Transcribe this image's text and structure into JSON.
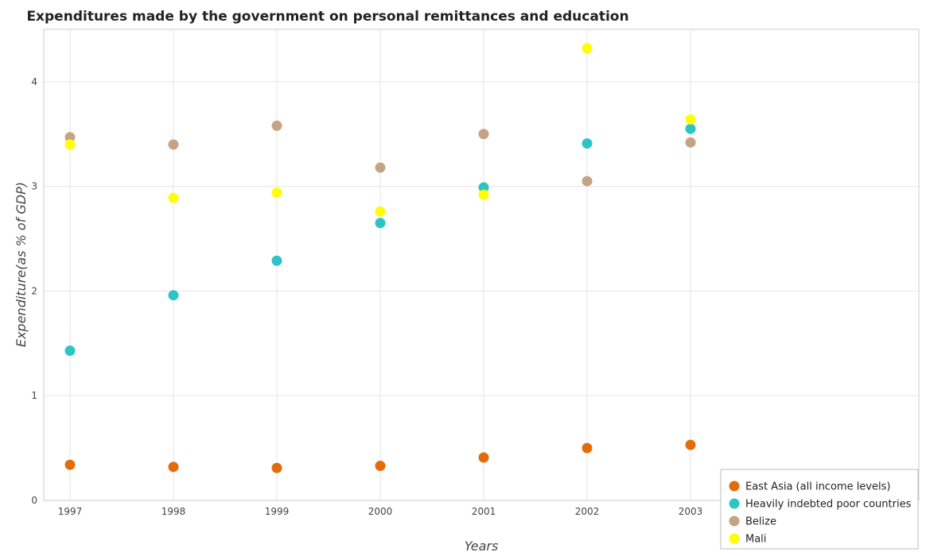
{
  "chart_data": {
    "type": "scatter",
    "title": "Expenditures made by the government on personal remittances and education",
    "xlabel": "Years",
    "ylabel": "Expenditure(as % of GDP)",
    "categories": [
      "1997",
      "1998",
      "1999",
      "2000",
      "2001",
      "2002",
      "2003"
    ],
    "ylim": [
      0,
      4.5
    ],
    "yticks": [
      "0",
      "1",
      "2",
      "3",
      "4"
    ],
    "grid": true,
    "legend_position": "bottom-right",
    "series": [
      {
        "name": "East Asia (all income levels)",
        "color": "#e36c0a",
        "values": [
          0.34,
          0.32,
          0.31,
          0.33,
          0.41,
          0.5,
          0.53
        ]
      },
      {
        "name": "Heavily indebted poor countries",
        "color": "#2ec4c6",
        "values": [
          1.43,
          1.96,
          2.29,
          2.65,
          2.99,
          3.41,
          3.55
        ]
      },
      {
        "name": "Belize",
        "color": "#c4a484",
        "values": [
          3.47,
          3.4,
          3.58,
          3.18,
          3.5,
          3.05,
          3.42
        ]
      },
      {
        "name": "Mali",
        "color": "#ffff00",
        "values": [
          3.4,
          2.89,
          2.94,
          2.76,
          2.92,
          4.32,
          3.64
        ]
      }
    ]
  }
}
